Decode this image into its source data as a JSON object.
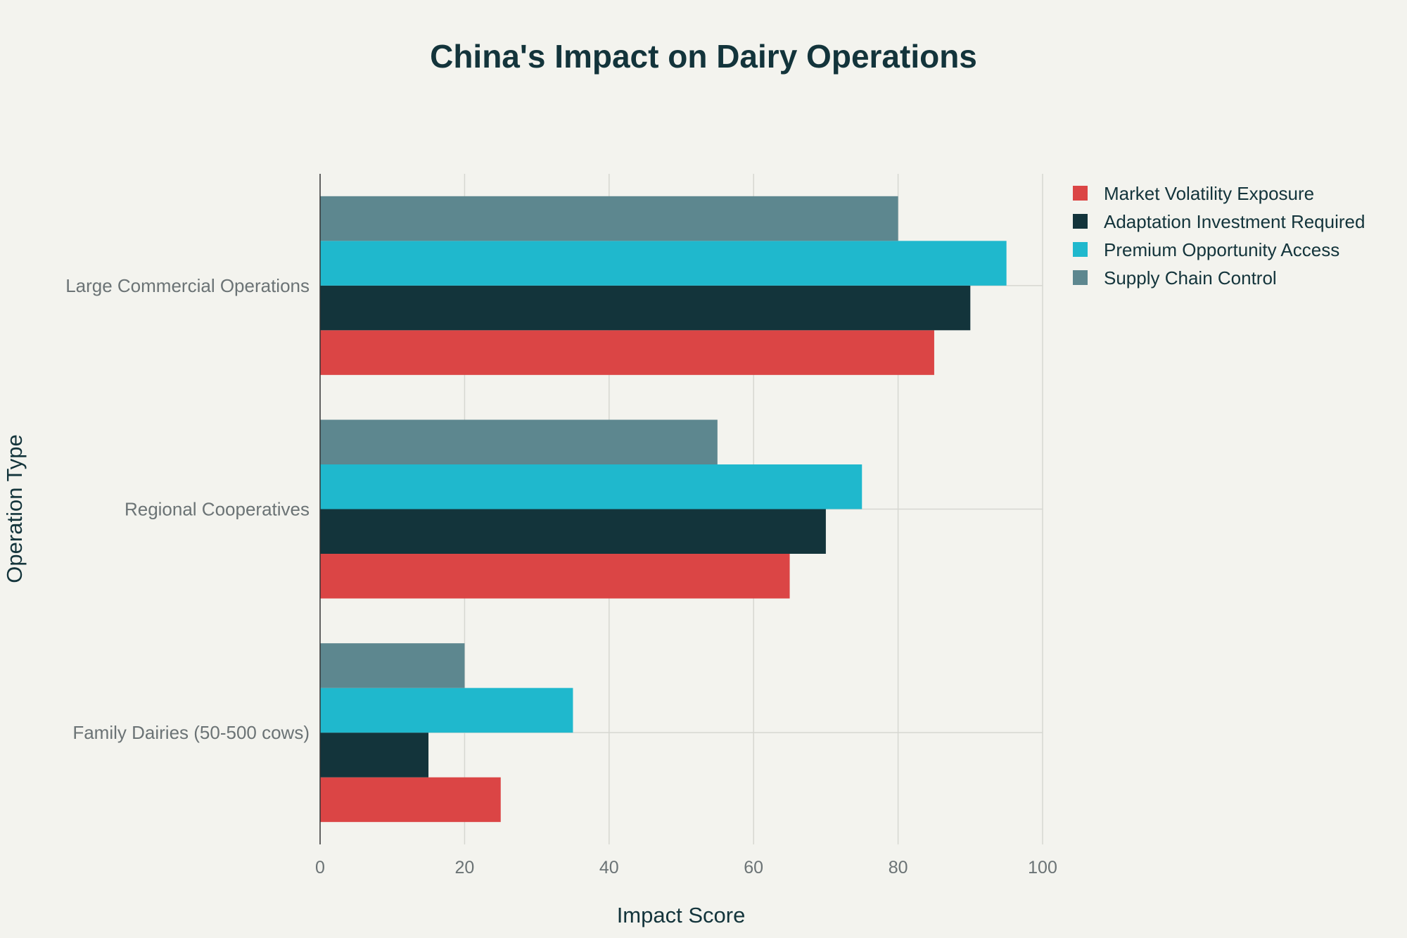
{
  "chart_data": {
    "type": "bar",
    "orientation": "horizontal",
    "title": "China's Impact on Dairy Operations",
    "xlabel": "Impact Score",
    "ylabel": "Operation Type",
    "xlim": [
      0,
      100
    ],
    "xticks": [
      0,
      20,
      40,
      60,
      80,
      100
    ],
    "categories": [
      "Large Commercial Operations",
      "Regional Cooperatives",
      "Family Dairies (50-500 cows)"
    ],
    "series": [
      {
        "name": "Market Volatility Exposure",
        "color": "#db4545",
        "values": [
          85,
          65,
          25
        ]
      },
      {
        "name": "Adaptation Investment Required",
        "color": "#13343b",
        "values": [
          90,
          70,
          15
        ]
      },
      {
        "name": "Premium Opportunity Access",
        "color": "#1fb8cd",
        "values": [
          95,
          75,
          35
        ]
      },
      {
        "name": "Supply Chain Control",
        "color": "#5d878f",
        "values": [
          80,
          55,
          20
        ]
      }
    ],
    "legend_position": "top-right",
    "grid": true
  }
}
